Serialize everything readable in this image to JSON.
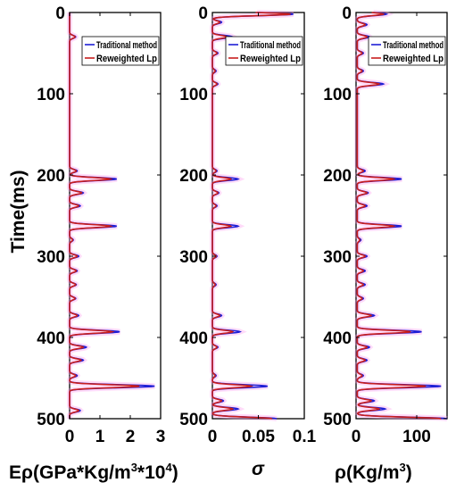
{
  "figure": {
    "ylabel": "Time(ms)",
    "yticks": [
      0,
      100,
      200,
      300,
      400,
      500
    ],
    "ylim": [
      0,
      500
    ],
    "y_inverted": true
  },
  "legend": {
    "items": [
      {
        "label": "Traditional method",
        "color": "#1f1fd6"
      },
      {
        "label": "Reweighted Lp",
        "color": "#c81e1e"
      }
    ],
    "placement": "top-right"
  },
  "colors": {
    "traditional": "#1f1fd6",
    "reweighted": "#c81e1e",
    "shade": "#ff99ee"
  },
  "chart_data": [
    {
      "type": "line",
      "xlabel_prefix": "Eρ(GPa*Kg/m",
      "xlabel_sup1": "3",
      "xlabel_mid": "*10",
      "xlabel_sup2": "4",
      "xlabel_suffix": ")",
      "xlim": [
        0,
        3
      ],
      "xticks": [
        0,
        1,
        2,
        3
      ],
      "ylim": [
        0,
        500
      ],
      "baseline": 0.0,
      "series": [
        {
          "name": "Traditional method",
          "peaks": [
            [
              30,
              0.2
            ],
            [
              195,
              0.25
            ],
            [
              205,
              1.55
            ],
            [
              222,
              0.45
            ],
            [
              238,
              0.35
            ],
            [
              263,
              1.55
            ],
            [
              280,
              0.12
            ],
            [
              300,
              0.3
            ],
            [
              318,
              0.25
            ],
            [
              335,
              0.22
            ],
            [
              352,
              0.2
            ],
            [
              373,
              0.3
            ],
            [
              393,
              1.65
            ],
            [
              412,
              0.55
            ],
            [
              428,
              0.45
            ],
            [
              447,
              0.25
            ],
            [
              460,
              2.8
            ],
            [
              490,
              0.35
            ]
          ]
        },
        {
          "name": "Reweighted Lp",
          "peaks": [
            [
              30,
              0.18
            ],
            [
              195,
              0.22
            ],
            [
              205,
              1.35
            ],
            [
              222,
              0.4
            ],
            [
              238,
              0.3
            ],
            [
              263,
              1.35
            ],
            [
              280,
              0.1
            ],
            [
              300,
              0.25
            ],
            [
              318,
              0.22
            ],
            [
              335,
              0.2
            ],
            [
              352,
              0.18
            ],
            [
              373,
              0.25
            ],
            [
              393,
              1.4
            ],
            [
              412,
              0.45
            ],
            [
              428,
              0.38
            ],
            [
              447,
              0.2
            ],
            [
              460,
              2.3
            ],
            [
              490,
              0.3
            ]
          ]
        }
      ]
    },
    {
      "type": "line",
      "xlabel": "σ",
      "xlim": [
        0,
        0.1
      ],
      "xticks": [
        0,
        0.05,
        0.1
      ],
      "ylim": [
        0,
        500
      ],
      "baseline": 0.0,
      "series": [
        {
          "name": "Traditional method",
          "peaks": [
            [
              2,
              0.088
            ],
            [
              12,
              0.01
            ],
            [
              30,
              0.022
            ],
            [
              50,
              0.006
            ],
            [
              72,
              0.004
            ],
            [
              88,
              0.006
            ],
            [
              195,
              0.005
            ],
            [
              205,
              0.028
            ],
            [
              222,
              0.007
            ],
            [
              238,
              0.005
            ],
            [
              263,
              0.028
            ],
            [
              300,
              0.005
            ],
            [
              335,
              0.004
            ],
            [
              373,
              0.01
            ],
            [
              393,
              0.03
            ],
            [
              412,
              0.006
            ],
            [
              447,
              0.004
            ],
            [
              460,
              0.06
            ],
            [
              478,
              0.012
            ],
            [
              488,
              0.028
            ],
            [
              500,
              0.07
            ]
          ]
        },
        {
          "name": "Reweighted Lp",
          "peaks": [
            [
              2,
              0.085
            ],
            [
              12,
              0.008
            ],
            [
              30,
              0.016
            ],
            [
              50,
              0.005
            ],
            [
              72,
              0.003
            ],
            [
              88,
              0.005
            ],
            [
              195,
              0.004
            ],
            [
              205,
              0.02
            ],
            [
              222,
              0.006
            ],
            [
              238,
              0.004
            ],
            [
              263,
              0.02
            ],
            [
              300,
              0.004
            ],
            [
              335,
              0.003
            ],
            [
              373,
              0.008
            ],
            [
              393,
              0.022
            ],
            [
              412,
              0.005
            ],
            [
              447,
              0.003
            ],
            [
              460,
              0.042
            ],
            [
              478,
              0.01
            ],
            [
              488,
              0.022
            ],
            [
              500,
              0.065
            ]
          ]
        }
      ]
    },
    {
      "type": "line",
      "xlabel_prefix": "ρ(Kg/m",
      "xlabel_sup1": "3",
      "xlabel_suffix": ")",
      "xlim": [
        0,
        150
      ],
      "xticks": [
        0,
        100
      ],
      "ylim": [
        0,
        500
      ],
      "baseline": 2,
      "series": [
        {
          "name": "Traditional method",
          "peaks": [
            [
              2,
              50
            ],
            [
              15,
              18
            ],
            [
              30,
              22
            ],
            [
              50,
              12
            ],
            [
              72,
              12
            ],
            [
              88,
              45
            ],
            [
              195,
              15
            ],
            [
              205,
              75
            ],
            [
              222,
              20
            ],
            [
              238,
              18
            ],
            [
              263,
              75
            ],
            [
              280,
              8
            ],
            [
              300,
              18
            ],
            [
              318,
              15
            ],
            [
              335,
              15
            ],
            [
              352,
              12
            ],
            [
              373,
              30
            ],
            [
              393,
              108
            ],
            [
              412,
              22
            ],
            [
              428,
              18
            ],
            [
              447,
              12
            ],
            [
              460,
              140
            ],
            [
              478,
              30
            ],
            [
              488,
              48
            ],
            [
              500,
              150
            ]
          ]
        },
        {
          "name": "Reweighted Lp",
          "peaks": [
            [
              2,
              45
            ],
            [
              15,
              15
            ],
            [
              30,
              18
            ],
            [
              50,
              10
            ],
            [
              72,
              10
            ],
            [
              88,
              38
            ],
            [
              195,
              12
            ],
            [
              205,
              62
            ],
            [
              222,
              18
            ],
            [
              238,
              15
            ],
            [
              263,
              62
            ],
            [
              280,
              6
            ],
            [
              300,
              15
            ],
            [
              318,
              12
            ],
            [
              335,
              12
            ],
            [
              352,
              10
            ],
            [
              373,
              25
            ],
            [
              393,
              90
            ],
            [
              412,
              18
            ],
            [
              428,
              15
            ],
            [
              447,
              10
            ],
            [
              460,
              115
            ],
            [
              478,
              25
            ],
            [
              488,
              38
            ],
            [
              500,
              140
            ]
          ]
        }
      ]
    }
  ]
}
